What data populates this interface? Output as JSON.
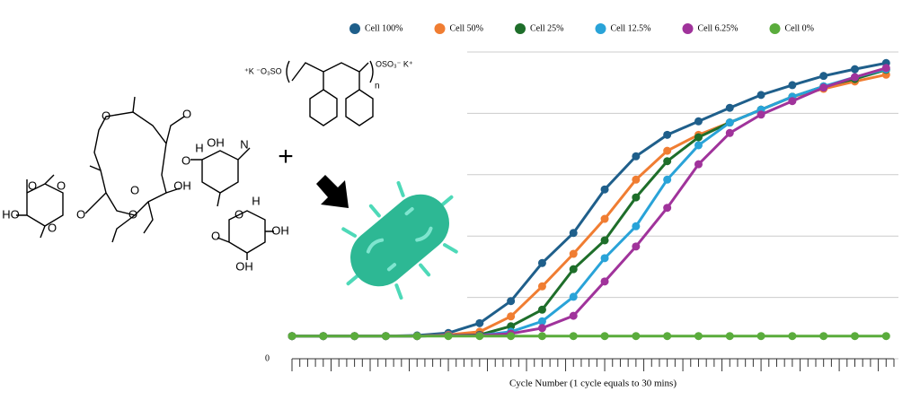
{
  "chart_data": {
    "type": "line",
    "x_label": "Cycle Number (1 cycle equals to 30 mins)",
    "x": [
      0,
      4,
      8,
      12,
      16,
      20,
      24,
      28,
      32,
      36,
      40,
      44,
      48,
      52,
      56,
      60,
      64,
      68,
      72,
      76
    ],
    "xlim": [
      0,
      77
    ],
    "xticks": [
      0,
      1,
      2,
      3,
      4,
      5,
      6,
      7,
      8,
      9,
      10,
      11,
      12,
      13,
      14,
      15,
      16,
      17,
      18,
      19,
      20,
      21,
      22,
      23,
      24,
      25,
      26,
      27,
      28,
      29,
      30,
      31,
      32,
      33,
      34,
      35,
      36,
      37,
      38,
      39,
      40,
      41,
      42,
      43,
      44,
      45,
      46,
      47,
      48,
      49,
      50,
      51,
      52,
      53,
      54,
      55,
      56,
      57,
      58,
      59,
      60,
      61,
      62,
      63,
      64,
      65,
      66,
      67,
      68,
      69,
      70,
      71,
      72,
      73,
      74,
      75,
      76,
      77
    ],
    "ylim": [
      0,
      5
    ],
    "yticks": [
      0
    ],
    "ygrid": [
      1,
      2,
      3,
      4,
      5
    ],
    "legend": "top",
    "series": [
      {
        "name": "Cell 100%",
        "color": "#1f5f8b",
        "values": [
          0.37,
          0.37,
          0.37,
          0.37,
          0.38,
          0.42,
          0.58,
          0.94,
          1.56,
          2.05,
          2.76,
          3.3,
          3.65,
          3.87,
          4.09,
          4.3,
          4.46,
          4.61,
          4.72,
          4.82
        ]
      },
      {
        "name": "Cell 50%",
        "color": "#f07d32",
        "values": [
          0.37,
          0.37,
          0.37,
          0.37,
          0.37,
          0.39,
          0.44,
          0.69,
          1.18,
          1.71,
          2.28,
          2.92,
          3.39,
          3.65,
          3.85,
          4.06,
          4.27,
          4.4,
          4.52,
          4.63
        ]
      },
      {
        "name": "Cell 25%",
        "color": "#1e6e2a",
        "values": [
          0.37,
          0.37,
          0.37,
          0.37,
          0.37,
          0.38,
          0.39,
          0.53,
          0.8,
          1.46,
          1.93,
          2.63,
          3.22,
          3.61,
          3.85,
          4.06,
          4.27,
          4.44,
          4.56,
          4.71
        ]
      },
      {
        "name": "Cell 12.5%",
        "color": "#29a3d8",
        "values": [
          0.37,
          0.37,
          0.37,
          0.37,
          0.37,
          0.38,
          0.38,
          0.44,
          0.61,
          1.01,
          1.64,
          2.16,
          2.92,
          3.48,
          3.85,
          4.06,
          4.27,
          4.44,
          4.59,
          4.72
        ]
      },
      {
        "name": "Cell 6.25%",
        "color": "#a0339b",
        "values": [
          0.37,
          0.37,
          0.37,
          0.37,
          0.37,
          0.38,
          0.38,
          0.41,
          0.5,
          0.7,
          1.26,
          1.83,
          2.46,
          3.17,
          3.68,
          3.98,
          4.2,
          4.42,
          4.59,
          4.74
        ]
      },
      {
        "name": "Cell 0%",
        "color": "#5aac3c",
        "values": [
          0.37,
          0.37,
          0.37,
          0.37,
          0.37,
          0.37,
          0.37,
          0.37,
          0.37,
          0.37,
          0.37,
          0.37,
          0.37,
          0.37,
          0.37,
          0.37,
          0.37,
          0.37,
          0.37,
          0.37
        ]
      }
    ]
  },
  "illustration": {
    "labels": [
      "O",
      "O",
      "OH",
      "H",
      "O",
      "N",
      "O",
      "O",
      "O",
      "HO",
      "O",
      "O",
      "O",
      "OH",
      "O",
      "H",
      "O",
      "OH",
      "OH",
      "+",
      "⁺K ⁻O₃SO",
      "OSO₃⁻ K⁺",
      "n"
    ]
  }
}
